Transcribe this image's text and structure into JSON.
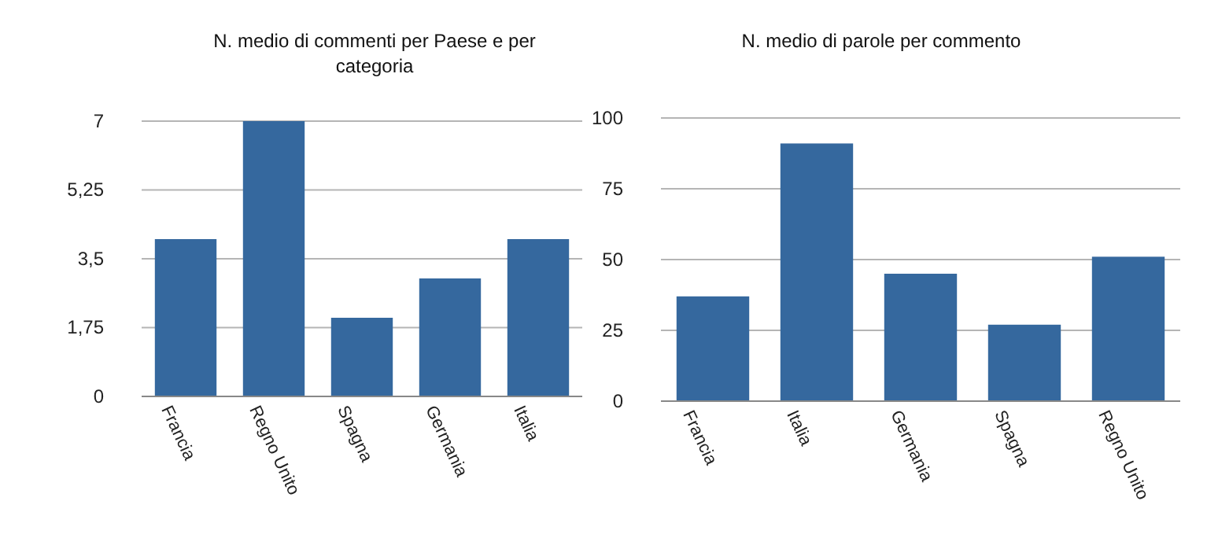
{
  "chart_data": [
    {
      "type": "bar",
      "title": "N. medio di commenti per Paese e per categoria",
      "categories": [
        "Francia",
        "Regno Unito",
        "Spagna",
        "Germania",
        "Italia"
      ],
      "values": [
        4,
        7,
        2,
        3,
        4
      ],
      "color": "#35689e",
      "ylim": [
        0,
        7
      ],
      "yticks": [
        0,
        {
          "value": 1.75,
          "label": "1,75"
        },
        {
          "value": 3.5,
          "label": "3,5"
        },
        {
          "value": 5.25,
          "label": "5,25"
        },
        7
      ],
      "grid": "y"
    },
    {
      "type": "bar",
      "title": "N. medio di parole per commento",
      "categories": [
        "Francia",
        "Italia",
        "Germania",
        "Spagna",
        "Regno Unito"
      ],
      "values": [
        37,
        91,
        45,
        27,
        51
      ],
      "color": "#35689e",
      "ylim": [
        0,
        100
      ],
      "yticks": [
        0,
        25,
        50,
        75,
        100
      ],
      "grid": "y"
    }
  ]
}
